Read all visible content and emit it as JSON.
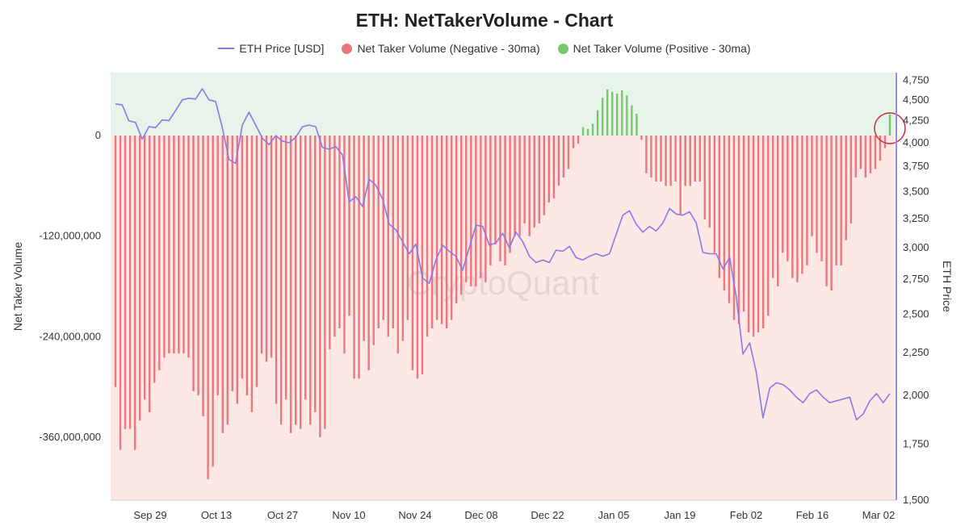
{
  "chart_data": {
    "type": "bar",
    "title": "ETH: NetTakerVolume - Chart",
    "watermark": "CryptoQuant",
    "ylabel_left": "Net Taker Volume",
    "ylabel_right": "ETH Price",
    "legend": {
      "placement": "top",
      "entries": [
        {
          "label": "ETH Price [USD]",
          "kind": "line",
          "color": "#8a78e6"
        },
        {
          "label": "Net Taker Volume (Negative - 30ma)",
          "kind": "dot",
          "color": "#e8787e"
        },
        {
          "label": "Net Taker Volume (Positive - 30ma)",
          "kind": "dot",
          "color": "#79c76b"
        }
      ]
    },
    "colors": {
      "negative_bar": "#e8787e",
      "positive_bar": "#79c76b",
      "negative_bg": "#fde8e6",
      "positive_bg": "#e6f4ea",
      "price_line": "#8a78e6",
      "right_axis_line": "#9a86ea",
      "highlight_circle": "#c0303a"
    },
    "x_ticks": [
      "Sep 29",
      "Oct 13",
      "Oct 27",
      "Nov 10",
      "Nov 24",
      "Dec 08",
      "Dec 22",
      "Jan 05",
      "Jan 19",
      "Feb 02",
      "Feb 16",
      "Mar 02"
    ],
    "y_left_ticks": [
      0,
      -120000000,
      -240000000,
      -360000000
    ],
    "y_left_tick_labels": [
      "0",
      "-120,000,000",
      "-240,000,000",
      "-360,000,000"
    ],
    "y_left_range": [
      -435000000,
      75000000
    ],
    "y_right_ticks": [
      1500,
      1750,
      2000,
      2250,
      2500,
      2750,
      3000,
      3250,
      3500,
      3750,
      4000,
      4250,
      4500,
      4750
    ],
    "y_right_tick_labels": [
      "1,500",
      "1,750",
      "2,000",
      "2,250",
      "2,500",
      "2,750",
      "3,000",
      "3,250",
      "3,500",
      "3,750",
      "4,000",
      "4,250",
      "4,500",
      "4,750"
    ],
    "y_right_scale": "log",
    "y_right_range": [
      1500,
      4850
    ],
    "bar_series": {
      "name": "Net Taker Volume (30ma)",
      "values_millions": [
        -300,
        -375,
        -350,
        -350,
        -375,
        -340,
        -315,
        -330,
        -295,
        -280,
        -265,
        -260,
        -260,
        -260,
        -260,
        -265,
        -305,
        -310,
        -335,
        -410,
        -395,
        -310,
        -355,
        -345,
        -305,
        -320,
        -290,
        -310,
        -330,
        -300,
        -260,
        -270,
        -265,
        -320,
        -345,
        -315,
        -355,
        -345,
        -350,
        -315,
        -345,
        -330,
        -360,
        -350,
        -255,
        -240,
        -230,
        -260,
        -215,
        -290,
        -290,
        -245,
        -280,
        -250,
        -230,
        -220,
        -240,
        -230,
        -260,
        -245,
        -220,
        -280,
        -290,
        -285,
        -240,
        -230,
        -220,
        -225,
        -230,
        -220,
        -200,
        -190,
        -175,
        -180,
        -180,
        -170,
        -175,
        -155,
        -130,
        -150,
        -155,
        -140,
        -120,
        -120,
        -105,
        -120,
        -110,
        -105,
        -95,
        -80,
        -75,
        -60,
        -50,
        -40,
        -15,
        -10,
        10,
        8,
        14,
        30,
        45,
        55,
        52,
        50,
        54,
        48,
        36,
        26,
        -5,
        -45,
        -50,
        -55,
        -55,
        -60,
        -60,
        -55,
        -95,
        -60,
        -60,
        -55,
        -55,
        -100,
        -110,
        -140,
        -170,
        -185,
        -200,
        -220,
        -225,
        -210,
        -235,
        -240,
        -235,
        -230,
        -215,
        -170,
        -180,
        -140,
        -150,
        -170,
        -175,
        -165,
        -155,
        -120,
        -140,
        -150,
        -180,
        -185,
        -155,
        -155,
        -125,
        -105,
        -50,
        -40,
        -50,
        -45,
        -40,
        -30,
        -15,
        25
      ]
    },
    "line_series": {
      "name": "ETH Price [USD]",
      "x_range_bar_index": [
        0,
        159
      ],
      "values": [
        4450,
        4440,
        4250,
        4230,
        4040,
        4180,
        4170,
        4260,
        4250,
        4370,
        4500,
        4520,
        4510,
        4640,
        4500,
        4480,
        4170,
        3820,
        3780,
        4200,
        4350,
        4200,
        4050,
        3980,
        4080,
        4020,
        4000,
        4060,
        4180,
        4200,
        4180,
        3950,
        3930,
        3960,
        3870,
        3400,
        3450,
        3360,
        3620,
        3560,
        3430,
        3200,
        3150,
        3050,
        2950,
        3030,
        2760,
        2720,
        2900,
        3020,
        2970,
        2930,
        2820,
        3000,
        3190,
        3180,
        3020,
        3040,
        3120,
        3000,
        3130,
        3050,
        2930,
        2880,
        2900,
        2880,
        2980,
        2970,
        3010,
        2920,
        2900,
        2930,
        2950,
        2930,
        2950,
        3110,
        3280,
        3320,
        3200,
        3130,
        3180,
        3140,
        3210,
        3340,
        3290,
        3280,
        3310,
        3210,
        2960,
        2950,
        2950,
        2830,
        2920,
        2620,
        2240,
        2310,
        2130,
        1880,
        2040,
        2070,
        2060,
        2030,
        1990,
        1960,
        2010,
        2030,
        1990,
        1960,
        1970,
        1980,
        1990,
        1870,
        1900,
        1970,
        2010,
        1960,
        2010
      ]
    },
    "highlight": {
      "label": "",
      "bar_index": 159
    }
  }
}
